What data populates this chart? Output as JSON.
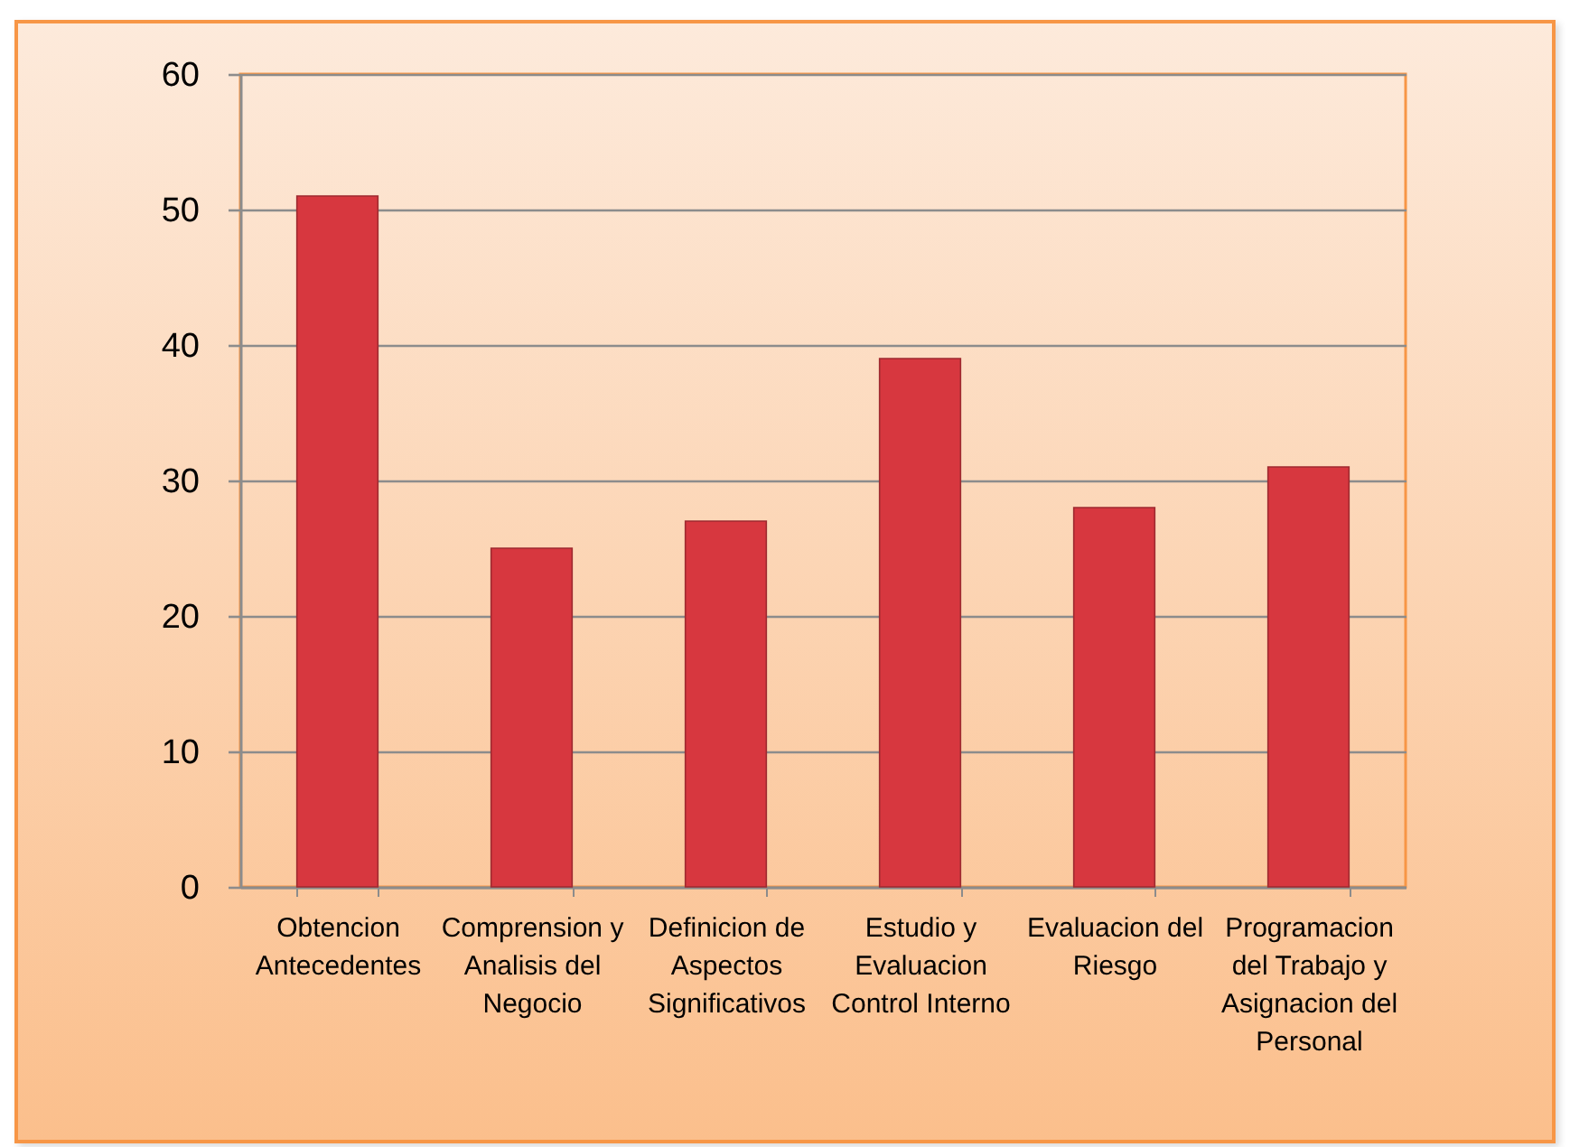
{
  "chart_data": {
    "type": "bar",
    "categories": [
      "Obtencion Antecedentes",
      "Comprension y Analisis del Negocio",
      "Definicion de Aspectos Significativos",
      "Estudio y Evaluacion Control Interno",
      "Evaluacion del Riesgo",
      "Programacion del Trabajo y Asignacion del Personal"
    ],
    "values": [
      51,
      25,
      27,
      39,
      28,
      31
    ],
    "color": "#d7373f",
    "ylim": [
      0,
      60
    ],
    "yticks": [
      0,
      10,
      20,
      30,
      40,
      50,
      60
    ],
    "grid": "y"
  }
}
